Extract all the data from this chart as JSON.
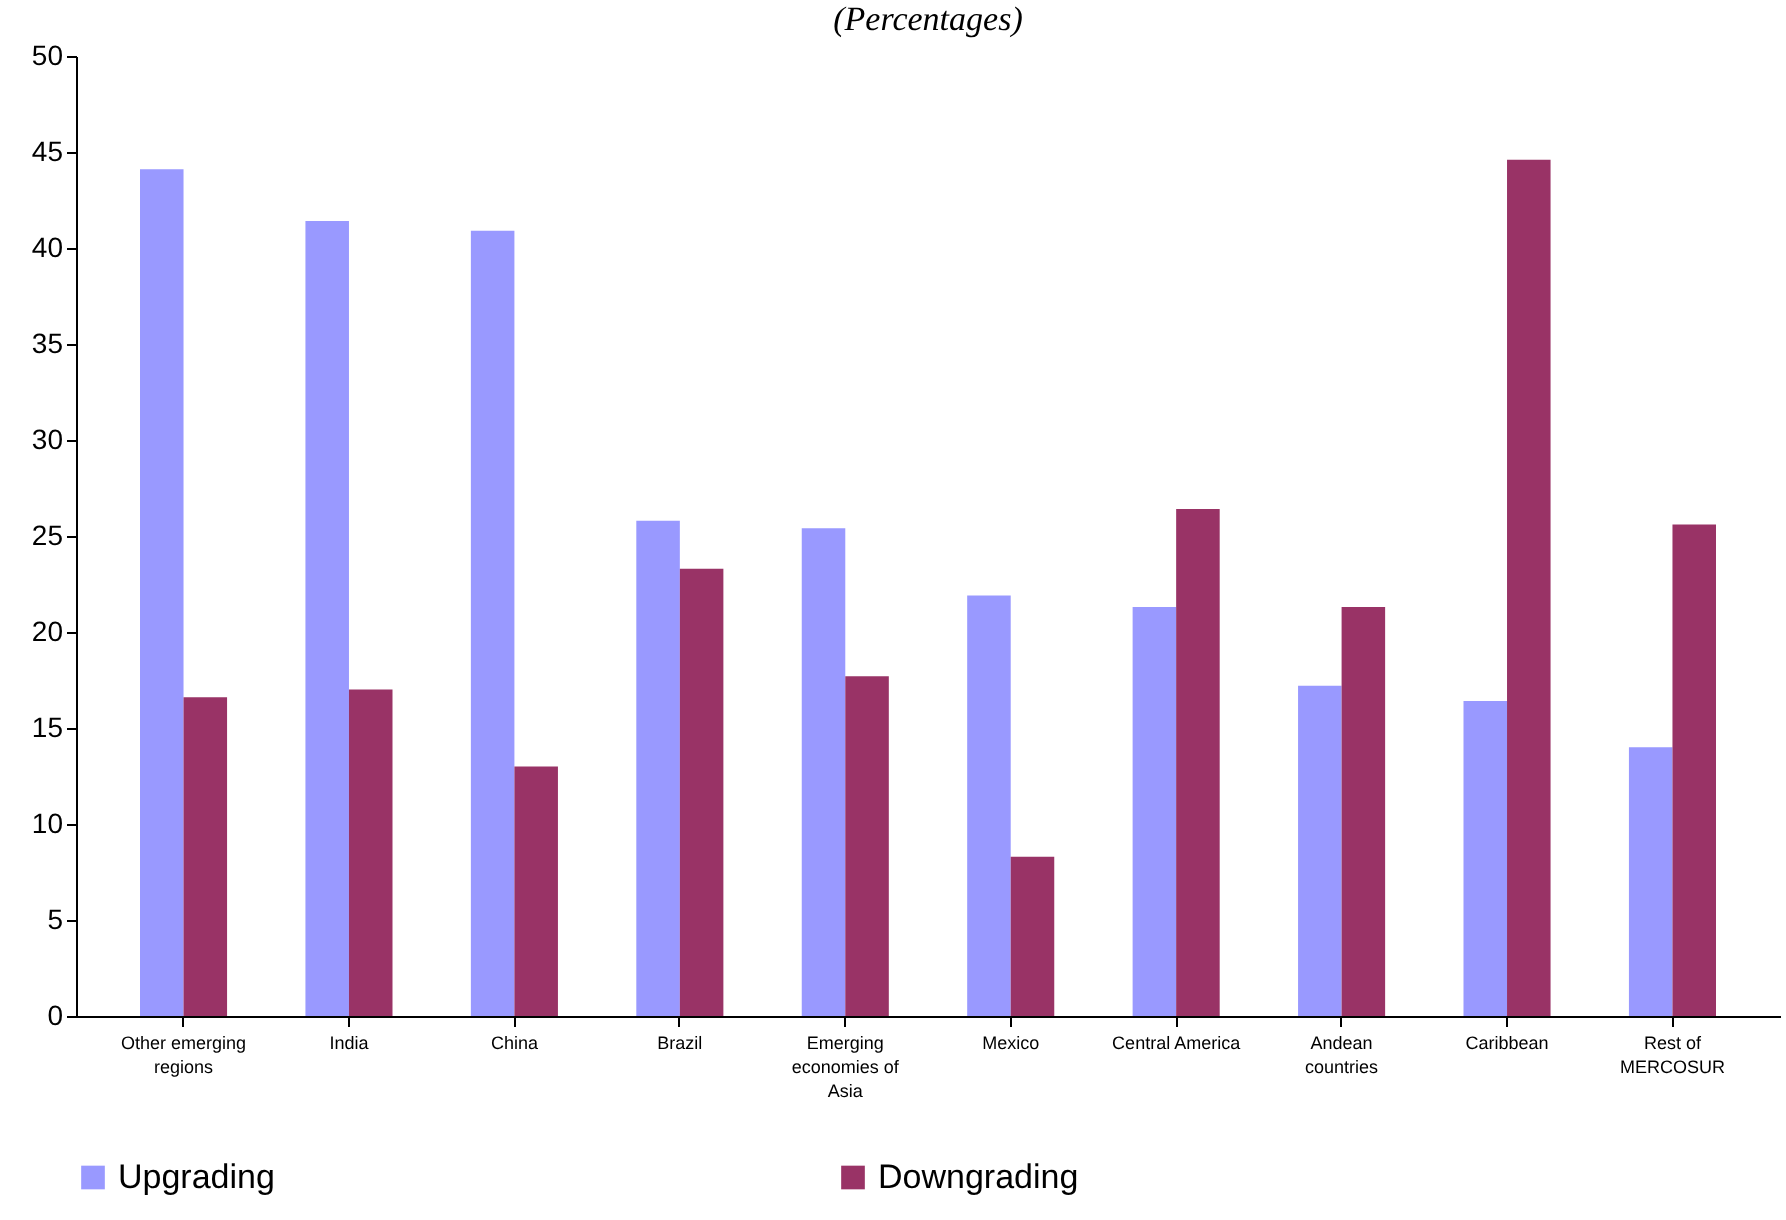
{
  "chart_data": {
    "type": "bar",
    "title": "(Percentages)",
    "categories": [
      "Other emerging regions",
      "India",
      "China",
      "Brazil",
      "Emerging economies of Asia",
      "Mexico",
      "Central America",
      "Andean countries",
      "Caribbean",
      "Rest of MERCOSUR"
    ],
    "series": [
      {
        "name": "Upgrading",
        "color": "#9999ff",
        "values": [
          44.1,
          41.4,
          40.9,
          25.8,
          25.4,
          21.9,
          21.3,
          17.2,
          16.4,
          14.0
        ]
      },
      {
        "name": "Downgrading",
        "color": "#993366",
        "values": [
          16.6,
          17.0,
          13.0,
          23.3,
          17.7,
          8.3,
          26.4,
          21.3,
          44.6,
          25.6
        ]
      }
    ],
    "ylim": [
      0,
      50
    ],
    "yticks": [
      0,
      5,
      10,
      15,
      20,
      25,
      30,
      35,
      40,
      45,
      50
    ],
    "grid": false,
    "legend": "bottom"
  }
}
